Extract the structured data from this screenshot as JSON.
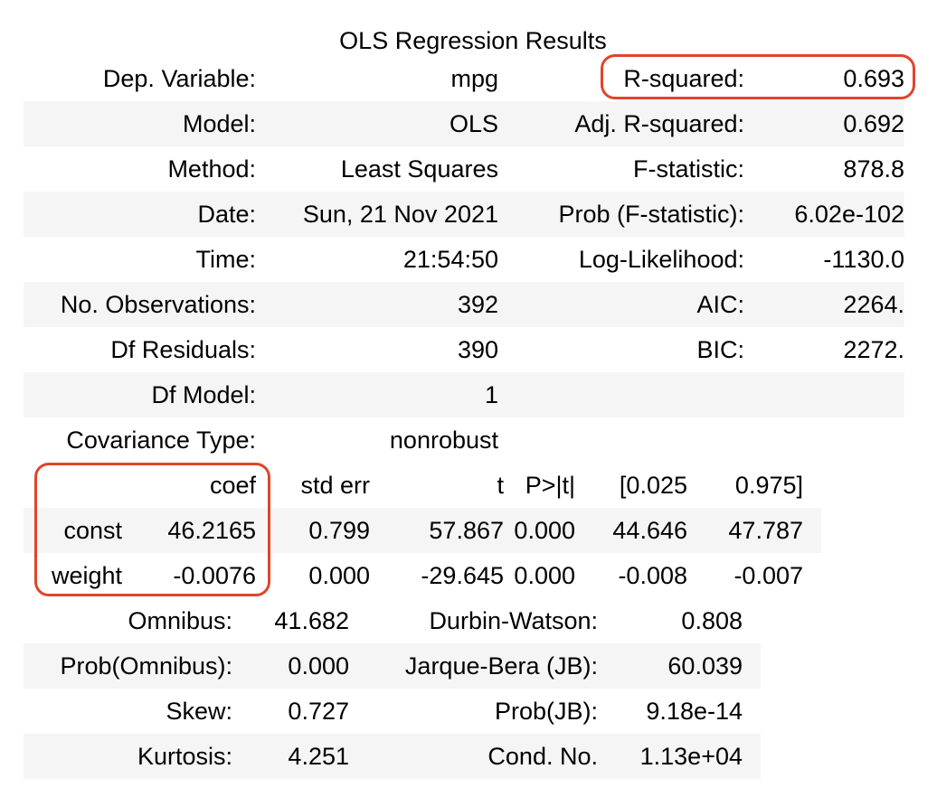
{
  "caption": "OLS Regression Results",
  "summary_rows": [
    {
      "l1": "Dep. Variable:",
      "v1": "mpg",
      "l2": "R-squared:",
      "v2": "0.693"
    },
    {
      "l1": "Model:",
      "v1": "OLS",
      "l2": "Adj. R-squared:",
      "v2": "0.692"
    },
    {
      "l1": "Method:",
      "v1": "Least Squares",
      "l2": "F-statistic:",
      "v2": "878.8"
    },
    {
      "l1": "Date:",
      "v1": "Sun, 21 Nov 2021",
      "l2": "Prob (F-statistic):",
      "v2": "6.02e-102"
    },
    {
      "l1": "Time:",
      "v1": "21:54:50",
      "l2": "Log-Likelihood:",
      "v2": "-1130.0"
    },
    {
      "l1": "No. Observations:",
      "v1": "392",
      "l2": "AIC:",
      "v2": "2264."
    },
    {
      "l1": "Df Residuals:",
      "v1": "390",
      "l2": "BIC:",
      "v2": "2272."
    },
    {
      "l1": "Df Model:",
      "v1": "1",
      "l2": "",
      "v2": ""
    },
    {
      "l1": "Covariance Type:",
      "v1": "nonrobust",
      "l2": "",
      "v2": ""
    }
  ],
  "coef_table": {
    "headers": [
      "",
      "coef",
      "std err",
      "t",
      "P>|t|",
      "[0.025",
      "0.975]"
    ],
    "rows": [
      [
        "const",
        "46.2165",
        "0.799",
        "57.867",
        "0.000",
        "44.646",
        "47.787"
      ],
      [
        "weight",
        "-0.0076",
        "0.000",
        "-29.645",
        "0.000",
        "-0.008",
        "-0.007"
      ]
    ]
  },
  "diagnostics_rows": [
    {
      "l1": "Omnibus:",
      "v1": "41.682",
      "l2": "Durbin-Watson:",
      "v2": "0.808"
    },
    {
      "l1": "Prob(Omnibus):",
      "v1": "0.000",
      "l2": "Jarque-Bera (JB):",
      "v2": "60.039"
    },
    {
      "l1": "Skew:",
      "v1": "0.727",
      "l2": "Prob(JB):",
      "v2": "9.18e-14"
    },
    {
      "l1": "Kurtosis:",
      "v1": "4.251",
      "l2": "Cond. No.",
      "v2": "1.13e+04"
    }
  ],
  "highlight_color": "#e0442a",
  "stripe_color": "#f5f5f5"
}
